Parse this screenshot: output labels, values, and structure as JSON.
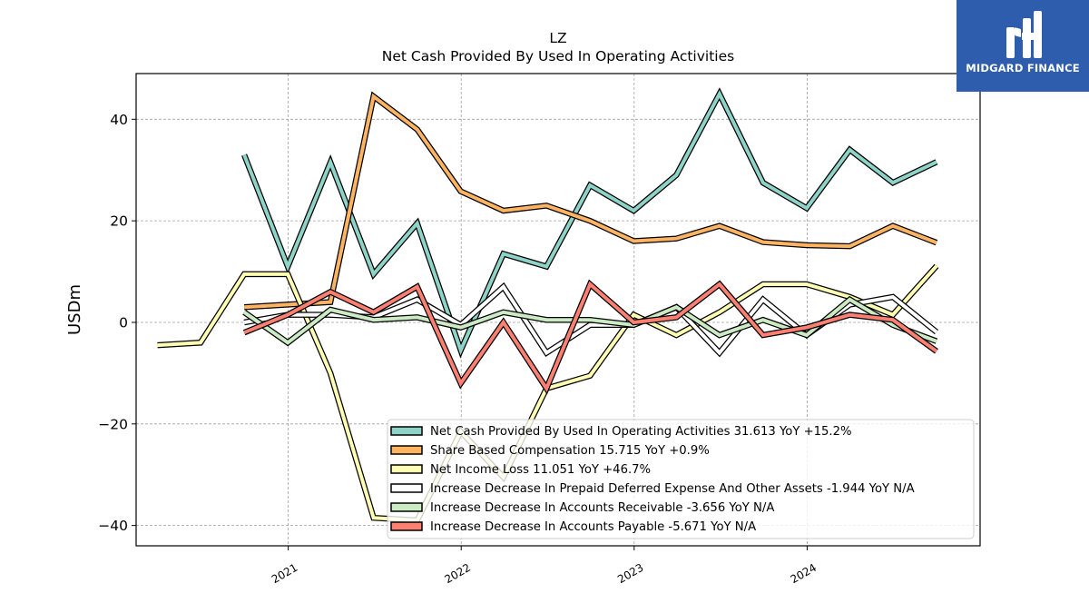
{
  "brand": {
    "name": "MIDGARD FINANCE",
    "color": "#2f5dad"
  },
  "chart_data": {
    "type": "line",
    "title": "LZ",
    "subtitle": "Net Cash Provided By Used In Operating Activities",
    "ylabel": "USDm",
    "xlabel": "",
    "ylim": [
      -44,
      49
    ],
    "yticks": [
      40,
      20,
      0,
      -20,
      -40
    ],
    "ytick_labels": [
      "40",
      "20",
      "0",
      "−20",
      "−40"
    ],
    "xlim": [
      "2020-02-15",
      "2024-12-31"
    ],
    "xticks": [
      "2021-01-01",
      "2022-01-01",
      "2023-01-01",
      "2024-01-01"
    ],
    "xtick_labels": [
      "2021",
      "2022",
      "2023",
      "2024"
    ],
    "grid": true,
    "legend_position": "lower-right",
    "series": [
      {
        "name": "Net Cash Provided By Used In Operating Activities",
        "legend": "Net Cash Provided By Used In Operating Activities  31.613 YoY +15.2%",
        "color": "#8dd3c7",
        "x": [
          "2020-09-30",
          "2020-12-31",
          "2021-03-31",
          "2021-06-30",
          "2021-09-30",
          "2021-12-31",
          "2022-03-31",
          "2022-06-30",
          "2022-09-30",
          "2022-12-31",
          "2023-03-31",
          "2023-06-30",
          "2023-09-30",
          "2023-12-31",
          "2024-03-31",
          "2024-06-30",
          "2024-09-30"
        ],
        "values": [
          33.0,
          11.0,
          31.5,
          9.5,
          19.5,
          -5.5,
          13.5,
          11.0,
          27.0,
          22.0,
          29.0,
          45.0,
          27.5,
          22.5,
          34.0,
          27.5,
          31.6
        ]
      },
      {
        "name": "Share Based Compensation",
        "legend": "Share Based Compensation  15.715 YoY +0.9%",
        "color": "#fdb462",
        "x": [
          "2020-09-30",
          "2020-12-31",
          "2021-03-31",
          "2021-06-30",
          "2021-09-30",
          "2021-12-31",
          "2022-03-31",
          "2022-06-30",
          "2022-09-30",
          "2022-12-31",
          "2023-03-31",
          "2023-06-30",
          "2023-09-30",
          "2023-12-31",
          "2024-03-31",
          "2024-06-30",
          "2024-09-30"
        ],
        "values": [
          3.0,
          3.5,
          4.0,
          44.5,
          38.0,
          25.8,
          22.0,
          23.0,
          20.0,
          16.0,
          16.5,
          19.0,
          15.8,
          15.2,
          15.0,
          19.0,
          15.7
        ]
      },
      {
        "name": "Net Income Loss",
        "legend": "Net Income Loss  11.051 YoY +46.7%",
        "color": "#ffffb3",
        "x": [
          "2020-03-31",
          "2020-06-30",
          "2020-09-30",
          "2020-12-31",
          "2021-03-31",
          "2021-06-30",
          "2021-09-30",
          "2021-12-31",
          "2022-03-31",
          "2022-06-30",
          "2022-09-30",
          "2022-12-31",
          "2023-03-31",
          "2023-06-30",
          "2023-09-30",
          "2023-12-31",
          "2024-03-31",
          "2024-06-30",
          "2024-09-30"
        ],
        "values": [
          -4.5,
          -4.0,
          9.5,
          9.5,
          -10.0,
          -38.5,
          -39.0,
          -21.5,
          -30.5,
          -13.0,
          -10.5,
          1.5,
          -2.5,
          2.0,
          7.5,
          7.5,
          5.0,
          1.5,
          11.1
        ]
      },
      {
        "name": "Increase Decrease In Prepaid Deferred Expense And Other Assets",
        "legend": "Increase Decrease In Prepaid Deferred Expense And Other Assets  -1.944 YoY N/A",
        "color": "#ffffff",
        "x": [
          "2020-09-30",
          "2020-12-31",
          "2021-03-31",
          "2021-06-30",
          "2021-09-30",
          "2021-12-31",
          "2022-03-31",
          "2022-06-30",
          "2022-09-30",
          "2022-12-31",
          "2023-03-31",
          "2023-06-30",
          "2023-09-30",
          "2023-12-31",
          "2024-03-31",
          "2024-06-30",
          "2024-09-30"
        ],
        "values": [
          0.0,
          1.5,
          1.5,
          1.0,
          4.5,
          -0.5,
          7.0,
          -6.0,
          -0.5,
          -0.5,
          3.0,
          -6.0,
          4.5,
          -2.5,
          3.5,
          5.0,
          -1.9
        ]
      },
      {
        "name": "Increase Decrease In Accounts Receivable",
        "legend": "Increase Decrease In Accounts Receivable  -3.656 YoY N/A",
        "color": "#ccebc5",
        "x": [
          "2020-09-30",
          "2020-12-31",
          "2021-03-31",
          "2021-06-30",
          "2021-09-30",
          "2021-12-31",
          "2022-03-31",
          "2022-06-30",
          "2022-09-30",
          "2022-12-31",
          "2023-03-31",
          "2023-06-30",
          "2023-09-30",
          "2023-12-31",
          "2024-03-31",
          "2024-06-30",
          "2024-09-30"
        ],
        "values": [
          2.0,
          -4.0,
          2.5,
          0.5,
          1.0,
          -1.0,
          2.0,
          0.5,
          0.5,
          -0.5,
          3.0,
          -2.5,
          0.5,
          -2.5,
          4.5,
          -0.5,
          -3.7
        ]
      },
      {
        "name": "Increase Decrease In Accounts Payable",
        "legend": "Increase Decrease In Accounts Payable  -5.671 YoY N/A",
        "color": "#fb8072",
        "x": [
          "2020-09-30",
          "2020-12-31",
          "2021-03-31",
          "2021-06-30",
          "2021-09-30",
          "2021-12-31",
          "2022-03-31",
          "2022-06-30",
          "2022-09-30",
          "2022-12-31",
          "2023-03-31",
          "2023-06-30",
          "2023-09-30",
          "2023-12-31",
          "2024-03-31",
          "2024-06-30",
          "2024-09-30"
        ],
        "values": [
          -2.0,
          1.5,
          6.0,
          2.0,
          7.0,
          -12.0,
          0.0,
          -13.0,
          7.5,
          0.0,
          1.0,
          7.5,
          -2.5,
          -1.0,
          1.5,
          0.5,
          -5.7
        ]
      }
    ]
  }
}
